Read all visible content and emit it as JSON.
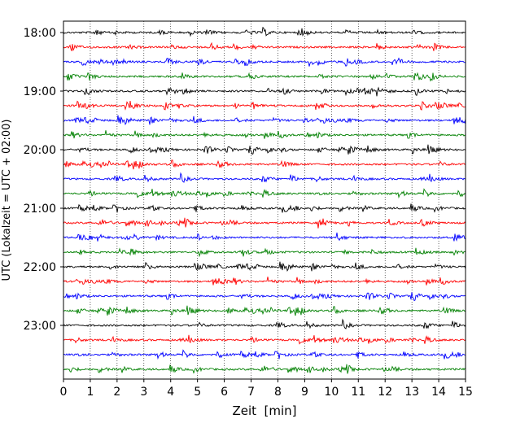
{
  "chart_data": {
    "type": "line",
    "subtype": "seismogram-helicorder",
    "xlabel": "Zeit  [min]",
    "ylabel": "UTC (Lokalzeit = UTC + 02:00)",
    "xlim": [
      0,
      15
    ],
    "xticks": [
      0,
      1,
      2,
      3,
      4,
      5,
      6,
      7,
      8,
      9,
      10,
      11,
      12,
      13,
      14,
      15
    ],
    "xtick_labels": [
      "0",
      "1",
      "2",
      "3",
      "4",
      "5",
      "6",
      "7",
      "8",
      "9",
      "10",
      "11",
      "12",
      "13",
      "14",
      "15"
    ],
    "ytick_labels": [
      "18:00",
      "19:00",
      "20:00",
      "21:00",
      "22:00",
      "23:00"
    ],
    "trace_start_hour": 18,
    "trace_interval_min": 15,
    "trace_count": 24,
    "trace_colors": [
      "#000000",
      "#ff0000",
      "#0000ff",
      "#008000"
    ],
    "grid_x": true,
    "grid_style": "dotted"
  }
}
